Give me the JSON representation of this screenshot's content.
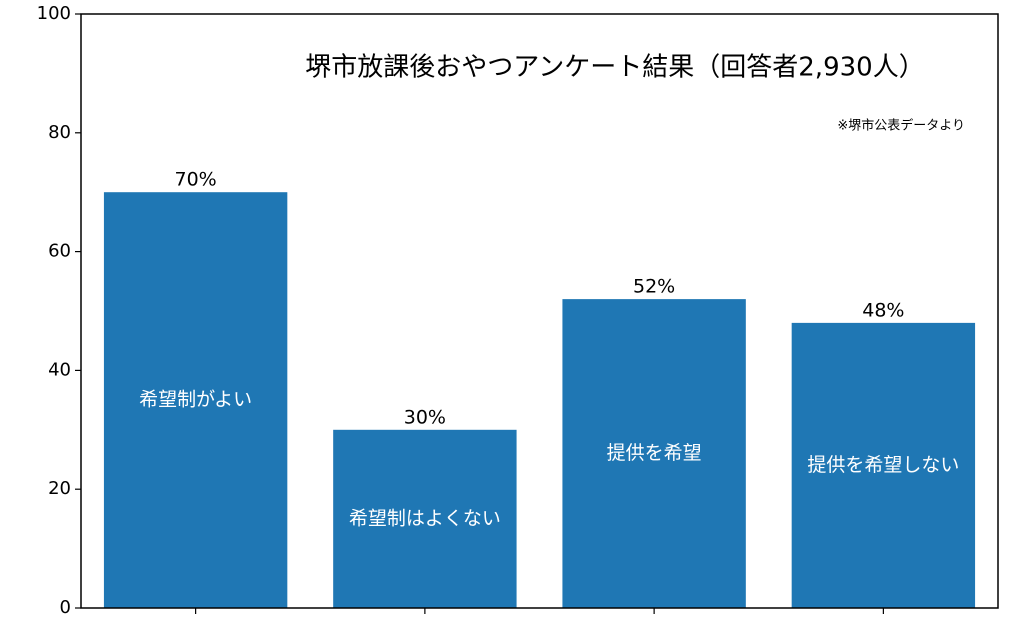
{
  "chart_data": {
    "type": "bar",
    "title": "堺市放課後おやつアンケート結果（回答者2,930人）",
    "note": "※堺市公表データより",
    "categories": [
      "希望制がよい",
      "希望制はよくない",
      "提供を希望",
      "提供を希望しない"
    ],
    "values": [
      70,
      30,
      52,
      48
    ],
    "value_labels": [
      "70%",
      "30%",
      "52%",
      "48%"
    ],
    "color": "#1f77b4",
    "ylim": [
      0,
      100
    ],
    "yticks": [
      0,
      20,
      40,
      60,
      80,
      100
    ]
  }
}
